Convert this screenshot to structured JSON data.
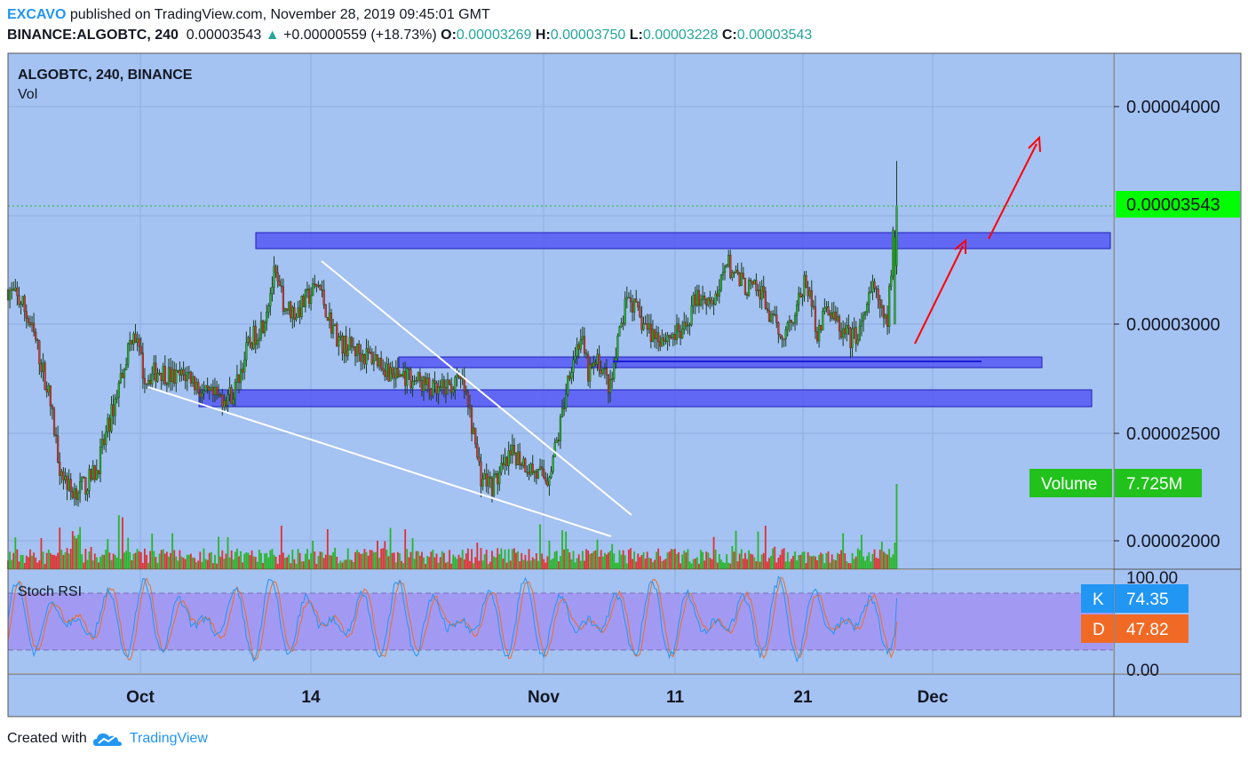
{
  "header": {
    "author": "EXCAVO",
    "published_text": "published on TradingView.com, November 28, 2019 09:45:01 GMT",
    "symbol": "BINANCE:ALGOBTC, 240",
    "last_price": "0.00003543",
    "change_arrow": "▲",
    "change": "+0.00000559 (+18.73%)",
    "open_label": "O:",
    "open": "0.00003269",
    "high_label": "H:",
    "high": "0.00003750",
    "low_label": "L:",
    "low": "0.00003228",
    "close_label": "C:",
    "close": "0.00003543"
  },
  "legend": {
    "title": "ALGOBTC, 240, BINANCE",
    "volume": "Vol",
    "stoch": "Stoch RSI"
  },
  "colors": {
    "pane_bg": "#a4c2f2",
    "up": "#26b526",
    "down": "#e03030",
    "zone_fill": "#4e4ef5",
    "rsi_k": "#2196F3",
    "rsi_d": "#f06a26",
    "last_price_tag": "#00ff00",
    "volume_tag": "#21c21b",
    "trendline": "#ffffff",
    "arrow": "#ff0000"
  },
  "price_axis": {
    "labels": [
      "0.00004000",
      "0.00003000",
      "0.00002500",
      "0.00002000"
    ],
    "last_price_tag": "0.00003543"
  },
  "volume_tag": {
    "label": "Volume",
    "value": "7.725M"
  },
  "stoch_axis": {
    "labels": [
      "100.00",
      "0.00"
    ],
    "k_label": "K",
    "k_value": "74.35",
    "d_label": "D",
    "d_value": "47.82"
  },
  "time_axis": [
    "Oct",
    "14",
    "Nov",
    "11",
    "21",
    "Dec"
  ],
  "footer": {
    "created_with": "Created with",
    "brand": "TradingView"
  },
  "chart_data": {
    "type": "candlestick",
    "symbol": "ALGOBTC",
    "timeframe": "240",
    "exchange": "BINANCE",
    "ylim": [
      1.89e-05,
      4.29e-05
    ],
    "price_anchors": [
      {
        "t": 0,
        "p": 3.16e-05
      },
      {
        "t": 8,
        "p": 3.09e-05
      },
      {
        "t": 15,
        "p": 2.92e-05
      },
      {
        "t": 22,
        "p": 2.68e-05
      },
      {
        "t": 28,
        "p": 2.35e-05
      },
      {
        "t": 34,
        "p": 2.23e-05
      },
      {
        "t": 42,
        "p": 2.26e-05
      },
      {
        "t": 48,
        "p": 2.33e-05
      },
      {
        "t": 55,
        "p": 2.55e-05
      },
      {
        "t": 62,
        "p": 2.79e-05
      },
      {
        "t": 68,
        "p": 2.98e-05
      },
      {
        "t": 74,
        "p": 2.75e-05
      },
      {
        "t": 82,
        "p": 2.79e-05
      },
      {
        "t": 90,
        "p": 2.75e-05
      },
      {
        "t": 98,
        "p": 2.77e-05
      },
      {
        "t": 106,
        "p": 2.67e-05
      },
      {
        "t": 114,
        "p": 2.66e-05
      },
      {
        "t": 122,
        "p": 2.68e-05
      },
      {
        "t": 130,
        "p": 2.9e-05
      },
      {
        "t": 138,
        "p": 3.01e-05
      },
      {
        "t": 144,
        "p": 3.22e-05
      },
      {
        "t": 150,
        "p": 3.08e-05
      },
      {
        "t": 156,
        "p": 3.05e-05
      },
      {
        "t": 162,
        "p": 3.12e-05
      },
      {
        "t": 168,
        "p": 3.18e-05
      },
      {
        "t": 174,
        "p": 3.02e-05
      },
      {
        "t": 180,
        "p": 2.91e-05
      },
      {
        "t": 186,
        "p": 2.89e-05
      },
      {
        "t": 192,
        "p": 2.86e-05
      },
      {
        "t": 200,
        "p": 2.84e-05
      },
      {
        "t": 208,
        "p": 2.77e-05
      },
      {
        "t": 216,
        "p": 2.76e-05
      },
      {
        "t": 224,
        "p": 2.73e-05
      },
      {
        "t": 232,
        "p": 2.68e-05
      },
      {
        "t": 240,
        "p": 2.72e-05
      },
      {
        "t": 246,
        "p": 2.73e-05
      },
      {
        "t": 250,
        "p": 2.58e-05
      },
      {
        "t": 256,
        "p": 2.3e-05
      },
      {
        "t": 262,
        "p": 2.26e-05
      },
      {
        "t": 268,
        "p": 2.33e-05
      },
      {
        "t": 274,
        "p": 2.41e-05
      },
      {
        "t": 280,
        "p": 2.36e-05
      },
      {
        "t": 286,
        "p": 2.31e-05
      },
      {
        "t": 292,
        "p": 2.29e-05
      },
      {
        "t": 298,
        "p": 2.49e-05
      },
      {
        "t": 304,
        "p": 2.8e-05
      },
      {
        "t": 310,
        "p": 2.94e-05
      },
      {
        "t": 314,
        "p": 2.77e-05
      },
      {
        "t": 320,
        "p": 2.83e-05
      },
      {
        "t": 326,
        "p": 2.7e-05
      },
      {
        "t": 332,
        "p": 3e-05
      },
      {
        "t": 336,
        "p": 3.13e-05
      },
      {
        "t": 342,
        "p": 3.02e-05
      },
      {
        "t": 348,
        "p": 2.96e-05
      },
      {
        "t": 354,
        "p": 2.94e-05
      },
      {
        "t": 360,
        "p": 2.95e-05
      },
      {
        "t": 366,
        "p": 2.96e-05
      },
      {
        "t": 372,
        "p": 3.12e-05
      },
      {
        "t": 378,
        "p": 3.13e-05
      },
      {
        "t": 384,
        "p": 3.09e-05
      },
      {
        "t": 388,
        "p": 3.3e-05
      },
      {
        "t": 394,
        "p": 3.21e-05
      },
      {
        "t": 400,
        "p": 3.17e-05
      },
      {
        "t": 408,
        "p": 3.14e-05
      },
      {
        "t": 414,
        "p": 3e-05
      },
      {
        "t": 420,
        "p": 2.96e-05
      },
      {
        "t": 426,
        "p": 3.06e-05
      },
      {
        "t": 432,
        "p": 3.2e-05
      },
      {
        "t": 438,
        "p": 2.97e-05
      },
      {
        "t": 444,
        "p": 3.08e-05
      },
      {
        "t": 450,
        "p": 2.98e-05
      },
      {
        "t": 456,
        "p": 2.93e-05
      },
      {
        "t": 462,
        "p": 2.98e-05
      },
      {
        "t": 468,
        "p": 3.17e-05
      },
      {
        "t": 474,
        "p": 3.02e-05
      },
      {
        "t": 476,
        "p": 3e-05
      },
      {
        "t": 479,
        "p": 3.4e-05
      },
      {
        "t": 481,
        "p": 3.54e-05
      }
    ],
    "volume": {
      "last": "7.725M"
    },
    "stoch_rsi": {
      "K": 74.35,
      "D": 47.82,
      "upper_band": 80,
      "lower_band": 20,
      "range": [
        0,
        100
      ]
    },
    "zones": [
      {
        "name": "resistance",
        "p_low": 3.35e-05,
        "p_high": 3.39e-05
      },
      {
        "name": "support-upper",
        "p_low": 2.82e-05,
        "p_high": 2.85e-05
      },
      {
        "name": "support-lower",
        "p_low": 2.63e-05,
        "p_high": 2.67e-05
      }
    ]
  }
}
